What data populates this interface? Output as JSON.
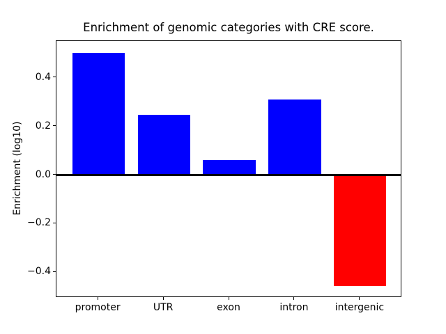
{
  "figure": {
    "background": "#ffffff",
    "text_color": "#000000",
    "axes_color": "#000000"
  },
  "chart_data": {
    "type": "bar",
    "title": "Enrichment of genomic categories with CRE score.",
    "xlabel": "",
    "ylabel": "Enrichment (log10)",
    "categories": [
      "promoter",
      "UTR",
      "exon",
      "intron",
      "intergenic"
    ],
    "values": [
      0.503,
      0.247,
      0.061,
      0.31,
      -0.457
    ],
    "bar_colors": [
      "#0000ff",
      "#0000ff",
      "#0000ff",
      "#0000ff",
      "#ff0000"
    ],
    "positive_color": "#0000ff",
    "negative_color": "#ff0000",
    "bar_width": 0.8,
    "ylim": [
      -0.505,
      0.551
    ],
    "xlim": [
      -0.64,
      4.64
    ],
    "yticks": [
      0.4,
      0.2,
      0.0,
      -0.2,
      -0.4
    ],
    "ytick_labels": [
      "0.4",
      "0.2",
      "0.0",
      "−0.2",
      "−0.4"
    ],
    "zero_line": true,
    "grid": false,
    "legend": null
  }
}
